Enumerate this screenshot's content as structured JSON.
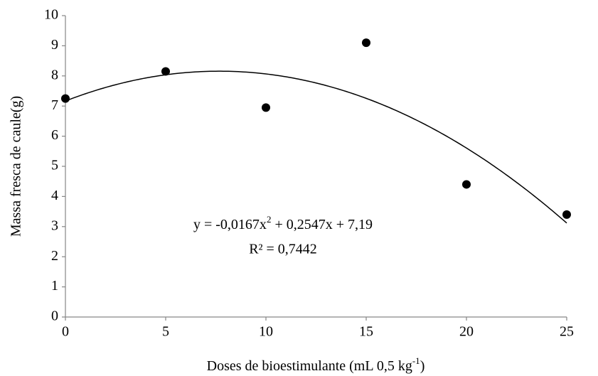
{
  "chart_data": {
    "type": "scatter",
    "x_label": {
      "text": "Doses de bioestimulante (mL 0,5 kg",
      "superscript": "-1",
      "suffix": ")"
    },
    "y_label": "Massa fresca de caule(g)",
    "x": [
      0,
      5,
      10,
      15,
      20,
      25
    ],
    "series": [
      {
        "color": "#000000",
        "values": [
          7.25,
          8.15,
          6.95,
          9.1,
          4.4,
          3.4
        ]
      }
    ],
    "xlim": [
      0,
      25
    ],
    "xticks": [
      0,
      5,
      10,
      15,
      20,
      25
    ],
    "ylim": [
      0,
      10
    ],
    "yticks": [
      0,
      1,
      2,
      3,
      4,
      5,
      6,
      7,
      8,
      9,
      10
    ],
    "grid": false,
    "trendline": {
      "type": "polynomial",
      "order": 2,
      "equation": {
        "text": "y = -0,0167x",
        "superscript": "2",
        "suffix": " + 0,2547x + 7,19"
      },
      "r2": "R² = 0,7442"
    }
  }
}
